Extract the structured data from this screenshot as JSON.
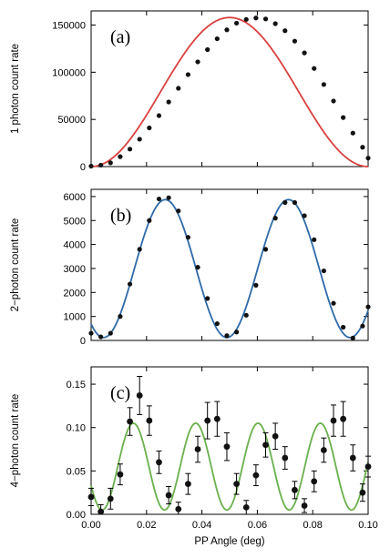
{
  "chart_data": [
    {
      "type": "scatter",
      "panel_label": "(a)",
      "ylabel": "1 photon count rate",
      "xlabel": "",
      "xlim": [
        0.0,
        0.1
      ],
      "ylim": [
        0,
        165000
      ],
      "yticks": [
        0,
        50000,
        100000,
        150000
      ],
      "ytick_labels": [
        "0",
        "50000",
        "100000",
        "150000"
      ],
      "xticks": [
        0.0,
        0.02,
        0.04,
        0.06,
        0.08,
        0.1
      ],
      "xtick_labels": [],
      "colors": {
        "fit": "#d9403f",
        "points": "#111111"
      },
      "fit": {
        "model": "A/2*(1-cos(2*pi*x/period))",
        "A": 158000,
        "period": 0.1,
        "offset": 0,
        "phase": 0
      },
      "series": [
        {
          "x": [
            0.0,
            0.0035,
            0.007,
            0.0105,
            0.014,
            0.0175,
            0.021,
            0.0245,
            0.028,
            0.0315,
            0.035,
            0.0385,
            0.042,
            0.0455,
            0.049,
            0.0525,
            0.056,
            0.0595,
            0.063,
            0.0665,
            0.07,
            0.0735,
            0.077,
            0.0805,
            0.084,
            0.0875,
            0.091,
            0.0945,
            0.098,
            0.1
          ],
          "y": [
            500,
            1500,
            4000,
            10500,
            18500,
            29000,
            41000,
            54000,
            68500,
            83000,
            97500,
            111000,
            124000,
            135500,
            145000,
            152000,
            156000,
            157500,
            156500,
            151500,
            144000,
            133000,
            120500,
            104000,
            87000,
            69500,
            52000,
            35500,
            20500,
            9000
          ],
          "yerr": []
        }
      ]
    },
    {
      "type": "scatter",
      "panel_label": "(b)",
      "ylabel": "2−photon count rate",
      "xlabel": "",
      "xlim": [
        0.0,
        0.1
      ],
      "ylim": [
        0,
        6300
      ],
      "yticks": [
        0,
        1000,
        2000,
        3000,
        4000,
        5000,
        6000
      ],
      "ytick_labels": [
        "0",
        "1000",
        "2000",
        "3000",
        "4000",
        "5000",
        "6000"
      ],
      "xticks": [
        0.0,
        0.02,
        0.04,
        0.06,
        0.08,
        0.1
      ],
      "xtick_labels": [],
      "colors": {
        "fit": "#2e6aa8",
        "points": "#111111"
      },
      "fit": {
        "model": "offset + A/2*(1-cos(2*pi*(x-phase)/period))",
        "A": 5750,
        "period": 0.0445,
        "offset": 120,
        "phase": 0.0045
      },
      "series": [
        {
          "x": [
            0.0,
            0.0035,
            0.007,
            0.0105,
            0.014,
            0.0175,
            0.021,
            0.0245,
            0.028,
            0.0315,
            0.035,
            0.0385,
            0.042,
            0.0455,
            0.049,
            0.0525,
            0.056,
            0.0595,
            0.063,
            0.0665,
            0.07,
            0.0735,
            0.077,
            0.0805,
            0.084,
            0.0875,
            0.091,
            0.0945,
            0.098,
            0.1
          ],
          "y": [
            300,
            150,
            300,
            1000,
            2350,
            3800,
            5000,
            5900,
            5950,
            5400,
            4300,
            3050,
            1750,
            700,
            200,
            350,
            1050,
            2300,
            3800,
            5100,
            5750,
            5750,
            5200,
            4200,
            2900,
            1550,
            550,
            100,
            600,
            1400
          ],
          "yerr": []
        }
      ]
    },
    {
      "type": "scatter",
      "panel_label": "(c)",
      "ylabel": "4−photon count rate",
      "xlabel": "PP Angle (deg)",
      "xlim": [
        0.0,
        0.1
      ],
      "ylim": [
        0.0,
        0.17
      ],
      "yticks": [
        0.0,
        0.05,
        0.1,
        0.15
      ],
      "ytick_labels": [
        "0.00",
        "0.05",
        "0.10",
        "0.15"
      ],
      "xticks": [
        0.0,
        0.02,
        0.04,
        0.06,
        0.08,
        0.1
      ],
      "xtick_labels": [
        "0.00",
        "0.02",
        "0.04",
        "0.06",
        "0.08",
        "0.10"
      ],
      "colors": {
        "fit": "#6ab04c",
        "points": "#111111"
      },
      "fit": {
        "model": "offset + A/2*(1-cos(2*pi*(x-phase)/period))",
        "A": 0.1,
        "period": 0.0225,
        "offset": 0.005,
        "phase": 0.004
      },
      "series": [
        {
          "x": [
            0.0,
            0.0035,
            0.007,
            0.0105,
            0.014,
            0.0175,
            0.021,
            0.0245,
            0.028,
            0.0315,
            0.035,
            0.0385,
            0.042,
            0.0455,
            0.049,
            0.0525,
            0.056,
            0.0595,
            0.063,
            0.0665,
            0.07,
            0.0735,
            0.077,
            0.0805,
            0.084,
            0.0875,
            0.091,
            0.0945,
            0.098,
            0.1
          ],
          "y": [
            0.02,
            0.003,
            0.018,
            0.046,
            0.107,
            0.137,
            0.108,
            0.06,
            0.022,
            0.006,
            0.035,
            0.075,
            0.108,
            0.11,
            0.078,
            0.035,
            0.008,
            0.045,
            0.08,
            0.09,
            0.065,
            0.028,
            0.01,
            0.038,
            0.074,
            0.108,
            0.11,
            0.065,
            0.025,
            0.055
          ],
          "yerr": [
            0.01,
            0.008,
            0.012,
            0.012,
            0.016,
            0.022,
            0.017,
            0.013,
            0.01,
            0.008,
            0.012,
            0.015,
            0.021,
            0.02,
            0.016,
            0.012,
            0.008,
            0.012,
            0.014,
            0.015,
            0.013,
            0.01,
            0.008,
            0.012,
            0.014,
            0.018,
            0.02,
            0.015,
            0.01,
            0.012
          ]
        }
      ]
    }
  ]
}
